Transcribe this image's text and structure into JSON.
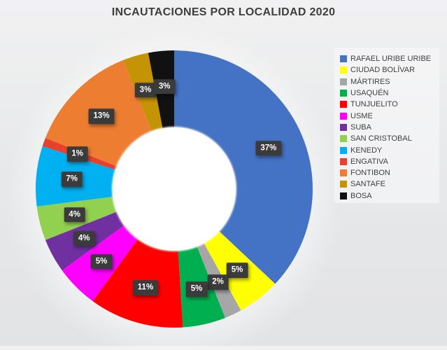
{
  "chart": {
    "title": "INCAUTACIONES POR LOCALIDAD 2020"
  },
  "chart_data": {
    "type": "pie",
    "subtype": "donut",
    "title": "INCAUTACIONES POR LOCALIDAD 2020",
    "unit": "percent",
    "legend_position": "right",
    "start_angle_deg": 0,
    "direction": "clockwise",
    "categories": [
      "RAFAEL URIBE URIBE",
      "CIUDAD BOLÍVAR",
      "MÁRTIRES",
      "USAQUÉN",
      "TUNJUELITO",
      "USME",
      "SUBA",
      "SAN CRISTOBAL",
      "KENEDY",
      "ENGATIVA",
      "FONTIBON",
      "SANTAFE",
      "BOSA"
    ],
    "values": [
      37,
      5,
      2,
      5,
      11,
      5,
      4,
      4,
      7,
      1,
      13,
      3,
      3
    ],
    "labels": [
      "37%",
      "5%",
      "2%",
      "5%",
      "11%",
      "5%",
      "4%",
      "4%",
      "7%",
      "1%",
      "13%",
      "3%",
      "3%"
    ],
    "colors": [
      "#4472C4",
      "#FFFF00",
      "#A6A6A6",
      "#00B050",
      "#FF0000",
      "#FF00FF",
      "#7030A0",
      "#92D050",
      "#00B0F0",
      "#E8402D",
      "#ED7D31",
      "#C49306",
      "#111111"
    ]
  },
  "style": {
    "label_bg": "#3B3B3B",
    "label_text_color": "#FFFFFF",
    "title_color": "#3E3E3E",
    "legend_text_color": "#404040",
    "background_color": "#E8E9EA",
    "hole_color": "#FFFFFF"
  }
}
